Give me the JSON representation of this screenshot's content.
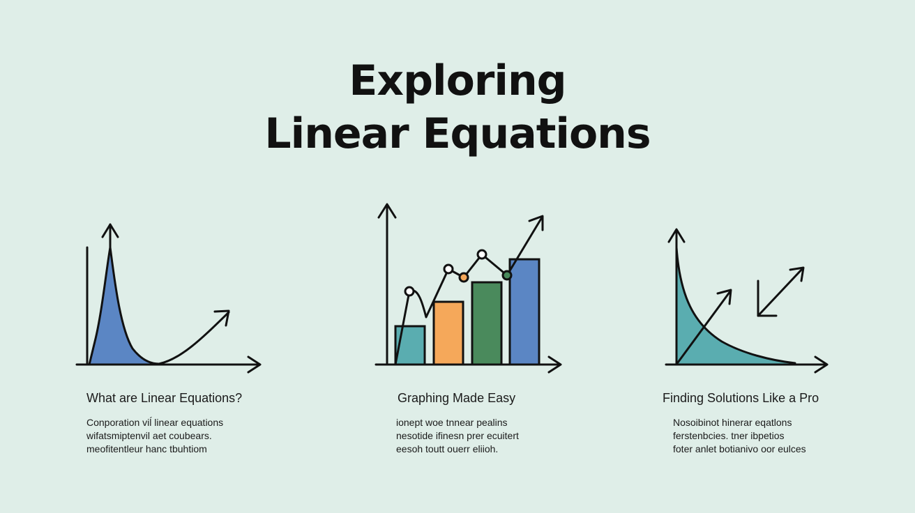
{
  "title": {
    "line1": "Exploring",
    "line2": "Linear Equations"
  },
  "panels": [
    {
      "heading": "What are Linear Equations?",
      "desc": [
        "Conporation viĺ linear equations",
        "wifatsmiptenvil aet coubears.",
        "meofitentleur hanc tbuhtiom"
      ]
    },
    {
      "heading": "Graphing Made Easy",
      "desc": [
        "ionept woe tnnear pealins",
        "nesotide ifinesn prer ecuitert",
        "eesoh toutt ouerr eliioh."
      ]
    },
    {
      "heading": "Finding Solutions Like a Pro",
      "desc": [
        "Nosoibinot hinerar eqatlons",
        "ferstenbcies. tner ibpetios",
        "foter anlet botianivo oor eulces"
      ]
    }
  ],
  "colors": {
    "background": "#dfeee8",
    "blue": "#5b86c4",
    "teal": "#5aadb0",
    "orange": "#f5a85a",
    "green": "#4a8a5c",
    "ink": "#111111"
  }
}
